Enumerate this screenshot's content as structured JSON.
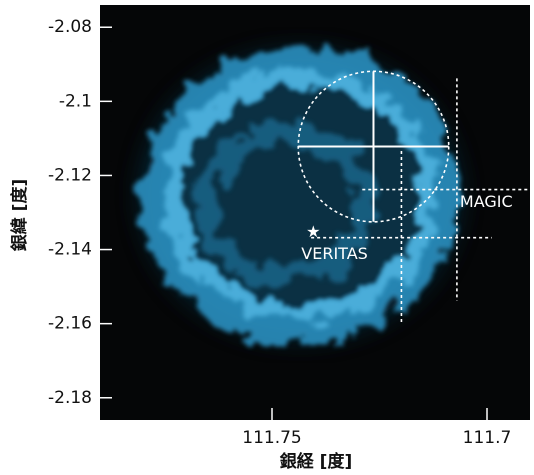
{
  "chart_data": {
    "type": "image",
    "xlabel": "銀経 [度]",
    "ylabel": "銀緯 [度]",
    "xlim": [
      111.79,
      111.69
    ],
    "ylim": [
      -2.186,
      -2.074
    ],
    "xticks": [
      111.75,
      111.7
    ],
    "yticks": [
      -2.08,
      -2.1,
      -2.12,
      -2.14,
      -2.16,
      -2.18
    ],
    "source_position": {
      "x": 111.7264,
      "y": -2.1122,
      "xerr": 0.0175,
      "yerr": 0.0203,
      "radius": 0.0175
    },
    "series": [
      {
        "name": "MAGIC",
        "x": [
          111.707
        ],
        "y": [
          -2.1238
        ],
        "xerr": [
          0.022
        ],
        "yerr": [
          0.03
        ]
      },
      {
        "name": "VERITAS",
        "x": [
          111.7199
        ],
        "y": [
          -2.1368
        ],
        "xerr": [
          0.021
        ],
        "yerr": [
          0.0234
        ],
        "star": {
          "x": 111.7404,
          "y": -2.1354
        }
      }
    ]
  }
}
